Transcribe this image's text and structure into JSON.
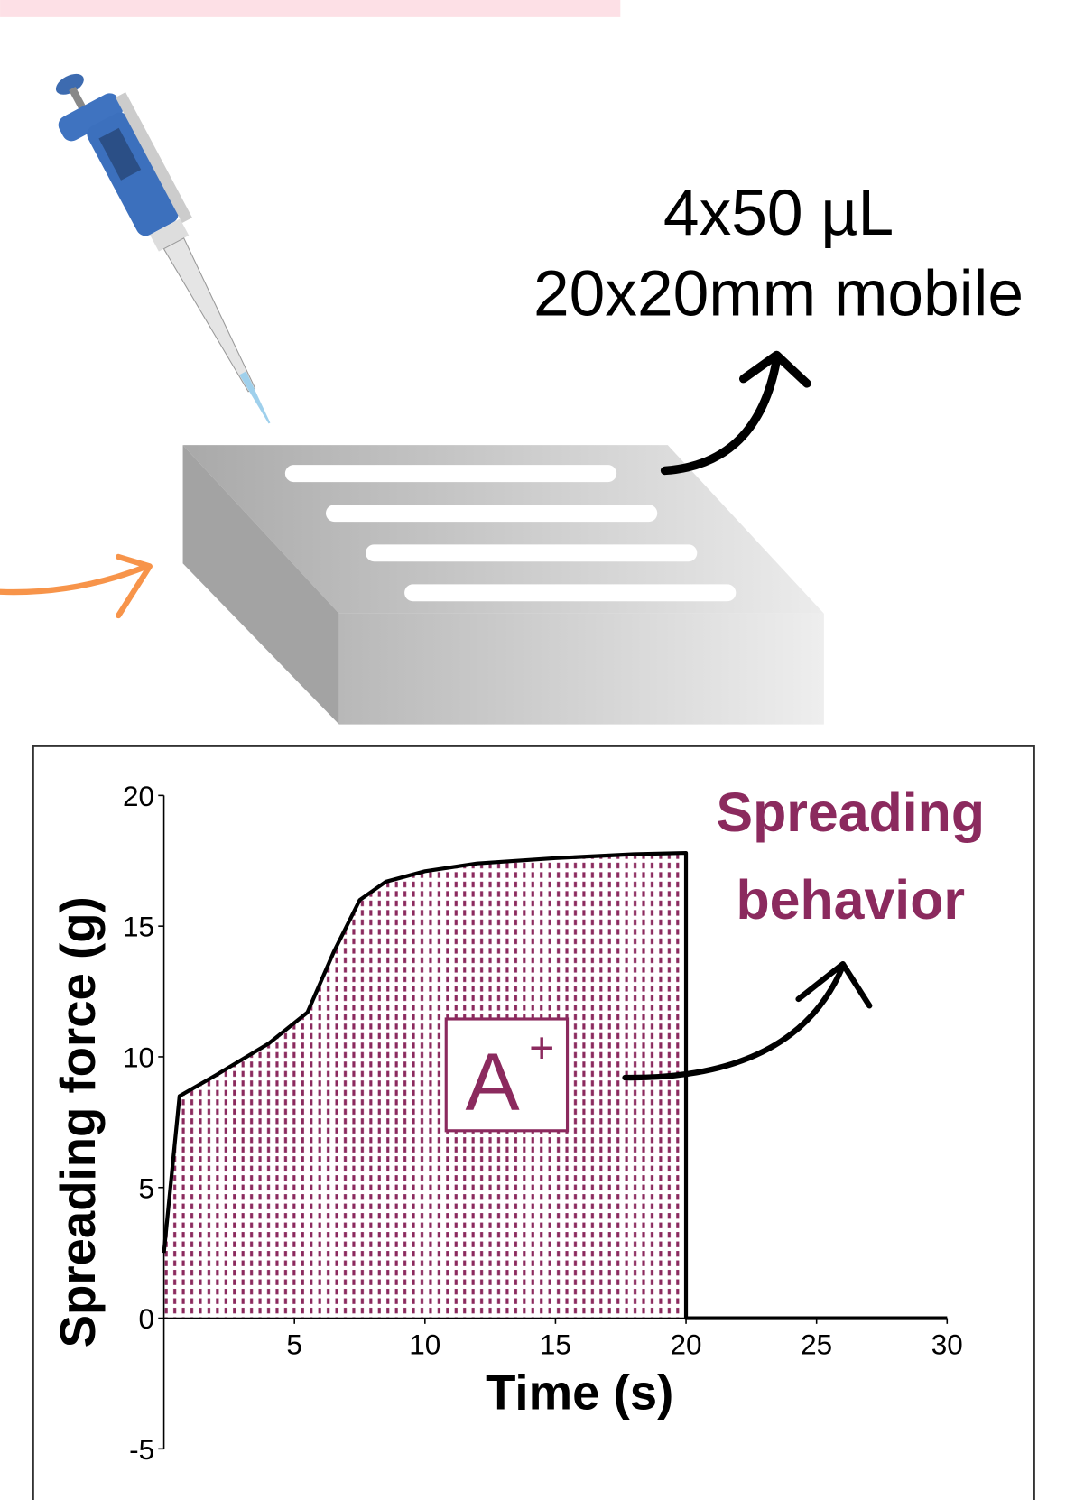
{
  "chart_data": {
    "type": "line",
    "header_lines": [
      "4x50 µL",
      "20x20mm mobile"
    ],
    "x_label": "Time (s)",
    "y_label": "Spreading force (g)",
    "annotation": [
      "Spreading",
      "behavior"
    ],
    "area_label": {
      "base": "A",
      "sup": "+"
    },
    "color": "#8b2a5e",
    "line_color": "#000000",
    "fill": "dotted",
    "x": [
      0,
      0.6,
      2,
      4,
      5.5,
      6.5,
      7.5,
      8.5,
      10,
      12,
      15,
      18,
      20,
      20,
      30
    ],
    "values": [
      2.5,
      8.5,
      9.3,
      10.5,
      11.7,
      14,
      16,
      16.7,
      17.1,
      17.4,
      17.6,
      17.75,
      17.8,
      0,
      0
    ],
    "xlim": [
      0,
      30
    ],
    "xticks": [
      5,
      10,
      15,
      20,
      25,
      30
    ],
    "ylim": [
      -5,
      20
    ],
    "yticks": [
      -5,
      0,
      5,
      10,
      15,
      20
    ]
  }
}
